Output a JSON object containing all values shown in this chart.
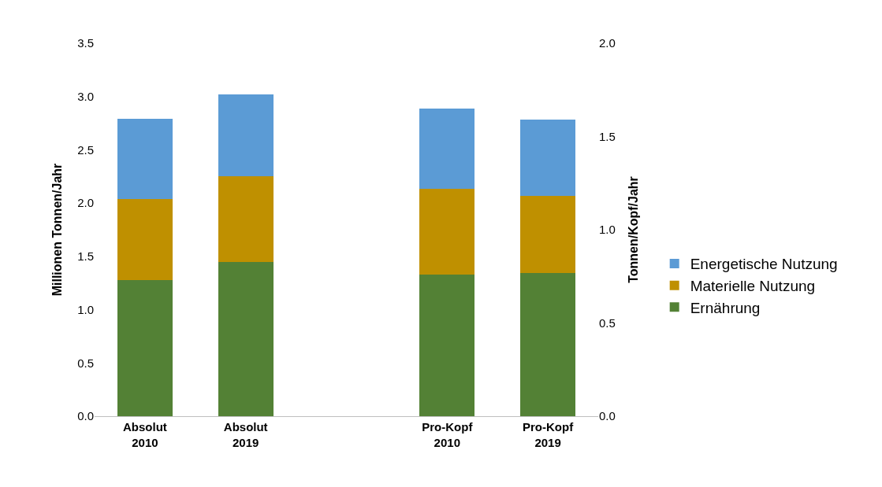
{
  "chart_data": {
    "type": "bar",
    "stacked": true,
    "ylabel": "Millionen Tonnen/Jahr",
    "y2label": "Tonnen/Kopf/Jahr",
    "categories": [
      "Absolut\n2010",
      "Absolut\n2019",
      null,
      "Pro-Kopf\n2010",
      "Pro-Kopf\n2019"
    ],
    "series": [
      {
        "name": "Ernährung",
        "color": "#538135",
        "values": [
          1.28,
          1.45,
          null,
          null,
          null
        ]
      },
      {
        "name": "Materielle Nutzung",
        "color": "#bf9000",
        "values": [
          0.76,
          0.8,
          null,
          null,
          null
        ]
      },
      {
        "name": "Energetische Nutzung",
        "color": "#5b9bd5",
        "values": [
          0.75,
          0.77,
          null,
          null,
          null
        ]
      },
      {
        "color": "#538135",
        "axis": "y2",
        "values": [
          null,
          null,
          null,
          0.76,
          0.77
        ]
      },
      {
        "color": "#bf9000",
        "axis": "y2",
        "values": [
          null,
          null,
          null,
          0.46,
          0.41
        ]
      },
      {
        "color": "#5b9bd5",
        "axis": "y2",
        "values": [
          null,
          null,
          null,
          0.43,
          0.41
        ]
      }
    ],
    "ylim": [
      0,
      3.5
    ],
    "yticks": [
      {
        "value": 0,
        "label": "0.0"
      },
      {
        "value": 0.5,
        "label": "0.5"
      },
      {
        "value": 1,
        "label": "1.0"
      },
      {
        "value": 1.5,
        "label": "1.5"
      },
      {
        "value": 2,
        "label": "2.0"
      },
      {
        "value": 2.5,
        "label": "2.5"
      },
      {
        "value": 3,
        "label": "3.0"
      },
      {
        "value": 3.5,
        "label": "3.5"
      }
    ],
    "y2lim": [
      0,
      2
    ],
    "y2ticks": [
      {
        "value": 0,
        "label": "0.0"
      },
      {
        "value": 0.5,
        "label": "0.5"
      },
      {
        "value": 1,
        "label": "1.0"
      },
      {
        "value": 1.5,
        "label": "1.5"
      },
      {
        "value": 2,
        "label": "2.0"
      }
    ],
    "grid": false,
    "legend": "right"
  }
}
